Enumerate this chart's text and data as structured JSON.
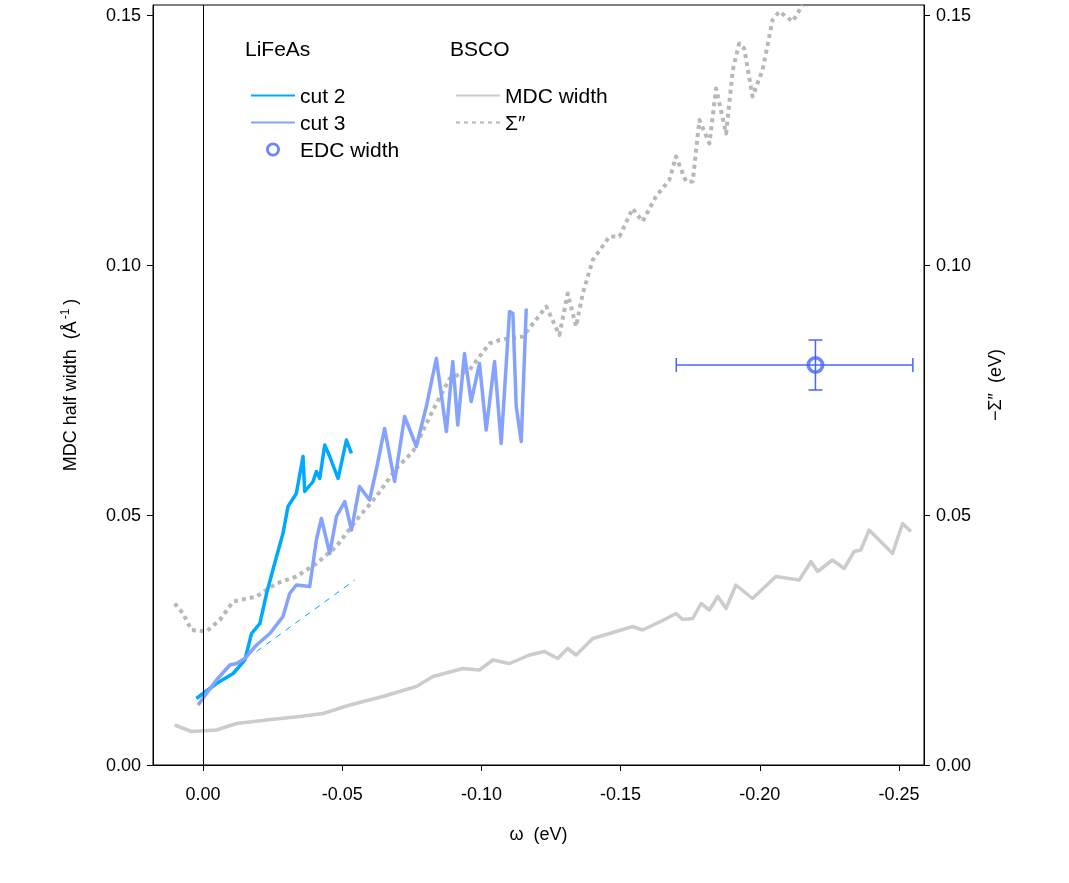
{
  "chart_data": {
    "type": "line",
    "xlabel": "ω  (eV)",
    "ylabel": "MDC half width  (Å$^{-1}$)",
    "y2label": "−Σ″  (eV)",
    "legend_title": [
      "LiFeAs",
      "BSCO"
    ],
    "xlim": [
      0.018,
      -0.259
    ],
    "xticks": [
      {
        "value": 0,
        "label": "0.00"
      },
      -0.05,
      {
        "value": -0.1,
        "label": "-0.10"
      },
      -0.15,
      {
        "value": -0.2,
        "label": "-0.20"
      },
      -0.25
    ],
    "ylim": [
      0,
      0.152
    ],
    "yticks": [
      {
        "value": 0,
        "label": "0.00"
      },
      0.05,
      {
        "value": 0.1,
        "label": "0.10"
      },
      0.15
    ],
    "y2lim": [
      0,
      0.152
    ],
    "y2ticks": [
      {
        "value": 0,
        "label": "0.00"
      },
      0.05,
      {
        "value": 0.1,
        "label": "0.10"
      },
      0.15
    ],
    "grid": false,
    "legend": "top left",
    "marker": "none",
    "ref_lines": [
      {
        "axis": "x",
        "value": 0,
        "color": "#000000",
        "line_style": "solid"
      }
    ],
    "series": [
      {
        "name": "cut 2",
        "color": "#00a8ff",
        "line_style": "solid",
        "x": [
          0.0024,
          -0.0048,
          -0.0108,
          -0.015,
          -0.0174,
          -0.0204,
          -0.0228,
          -0.0257,
          -0.0287,
          -0.0305,
          -0.0335,
          -0.0359,
          -0.0365,
          -0.0395,
          -0.0407,
          -0.0419,
          -0.0437,
          -0.0455,
          -0.0485,
          -0.0515,
          -0.0533
        ],
        "values": [
          0.0133,
          0.0163,
          0.0183,
          0.021,
          0.0263,
          0.0283,
          0.0343,
          0.0403,
          0.0463,
          0.0517,
          0.0543,
          0.0617,
          0.0547,
          0.0567,
          0.0587,
          0.0573,
          0.064,
          0.0617,
          0.0573,
          0.065,
          0.0623
        ]
      },
      {
        "name": "cut 3",
        "color": "#85a2ff",
        "line_style": "solid",
        "x": [
          0.0018,
          -0.0048,
          -0.0096,
          -0.012,
          -0.015,
          -0.0192,
          -0.024,
          -0.0287,
          -0.0311,
          -0.0335,
          -0.0383,
          -0.0407,
          -0.0425,
          -0.0455,
          -0.0479,
          -0.0509,
          -0.0533,
          -0.0562,
          -0.0598,
          -0.0622,
          -0.0652,
          -0.0688,
          -0.0724,
          -0.0766,
          -0.0802,
          -0.0838,
          -0.0874,
          -0.0897,
          -0.0915,
          -0.0939,
          -0.0963,
          -0.0993,
          -0.1017,
          -0.1047,
          -0.1071,
          -0.1101,
          -0.1113,
          -0.1125,
          -0.1143,
          -0.1161
        ],
        "values": [
          0.012,
          0.017,
          0.02,
          0.0203,
          0.0213,
          0.024,
          0.0263,
          0.0297,
          0.0343,
          0.036,
          0.0357,
          0.045,
          0.0493,
          0.0423,
          0.0497,
          0.0527,
          0.047,
          0.0557,
          0.053,
          0.059,
          0.0673,
          0.0567,
          0.0697,
          0.0637,
          0.0717,
          0.0813,
          0.0667,
          0.0807,
          0.068,
          0.0823,
          0.0727,
          0.0803,
          0.067,
          0.0807,
          0.0643,
          0.0907,
          0.0903,
          0.0717,
          0.0647,
          0.0913
        ]
      },
      {
        "name": "EDC width",
        "type": "scatter",
        "color": "#4466ff",
        "marker": "circle",
        "x": [
          -0.22
        ],
        "values": [
          0.08
        ],
        "errors": [
          0.005
        ],
        "xerrors": [
          [
            -0.255,
            -0.17
          ]
        ]
      },
      {
        "name": "MDC width",
        "color": "#cccccc",
        "line_style": "solid",
        "x": [
          0.0102,
          0.0042,
          -0.0048,
          -0.012,
          -0.0228,
          -0.0347,
          -0.0431,
          -0.0527,
          -0.0646,
          -0.0766,
          -0.0826,
          -0.0933,
          -0.0993,
          -0.1041,
          -0.1101,
          -0.1173,
          -0.1227,
          -0.1274,
          -0.131,
          -0.134,
          -0.14,
          -0.1484,
          -0.1543,
          -0.1579,
          -0.1651,
          -0.1699,
          -0.1723,
          -0.1759,
          -0.1789,
          -0.1819,
          -0.1849,
          -0.1879,
          -0.1914,
          -0.1974,
          -0.2058,
          -0.2142,
          -0.2184,
          -0.2208,
          -0.2261,
          -0.2303,
          -0.2339,
          -0.2363,
          -0.2393,
          -0.2477,
          -0.2513,
          -0.2543
        ],
        "values": [
          0.008,
          0.0067,
          0.007,
          0.0083,
          0.009,
          0.0097,
          0.0103,
          0.012,
          0.0137,
          0.0157,
          0.0177,
          0.0193,
          0.019,
          0.021,
          0.0203,
          0.022,
          0.0227,
          0.0213,
          0.0233,
          0.022,
          0.0253,
          0.0267,
          0.0277,
          0.027,
          0.0289,
          0.0303,
          0.0291,
          0.0293,
          0.0323,
          0.031,
          0.0337,
          0.0313,
          0.036,
          0.0333,
          0.0377,
          0.037,
          0.0407,
          0.0387,
          0.041,
          0.0393,
          0.0427,
          0.043,
          0.047,
          0.0423,
          0.0483,
          0.0467
        ]
      },
      {
        "name": "Σ″",
        "axis": "y2",
        "color": "#b8b8b8",
        "line_style": "dotted",
        "x": [
          0.0102,
          0.0072,
          0.0042,
          -0.0012,
          -0.006,
          -0.0108,
          -0.0192,
          -0.0263,
          -0.0335,
          -0.0407,
          -0.0479,
          -0.0551,
          -0.0622,
          -0.0694,
          -0.0754,
          -0.0826,
          -0.0886,
          -0.0957,
          -0.1029,
          -0.1065,
          -0.1149,
          -0.1233,
          -0.128,
          -0.131,
          -0.134,
          -0.1364,
          -0.14,
          -0.146,
          -0.1496,
          -0.1543,
          -0.1579,
          -0.1627,
          -0.1675,
          -0.1699,
          -0.1735,
          -0.1759,
          -0.1783,
          -0.1819,
          -0.1843,
          -0.1879,
          -0.1903,
          -0.1926,
          -0.1944,
          -0.1974,
          -0.201,
          -0.2046,
          -0.207,
          -0.2118,
          -0.2154
        ],
        "values": [
          0.0323,
          0.0303,
          0.027,
          0.0267,
          0.029,
          0.0327,
          0.0337,
          0.0363,
          0.0377,
          0.0403,
          0.0437,
          0.049,
          0.0537,
          0.0593,
          0.0627,
          0.071,
          0.0773,
          0.079,
          0.0843,
          0.085,
          0.0857,
          0.0917,
          0.086,
          0.0943,
          0.0877,
          0.0943,
          0.101,
          0.1057,
          0.1057,
          0.1113,
          0.1087,
          0.1137,
          0.117,
          0.1217,
          0.1167,
          0.1167,
          0.129,
          0.1243,
          0.1353,
          0.1263,
          0.139,
          0.1443,
          0.1433,
          0.1337,
          0.139,
          0.149,
          0.1507,
          0.1487,
          0.152
        ]
      },
      {
        "color": "#00a8ff",
        "line_style": "dashed",
        "x": [
          -0.0192,
          -0.0545
        ],
        "values": [
          0.0227,
          0.037
        ]
      }
    ]
  }
}
